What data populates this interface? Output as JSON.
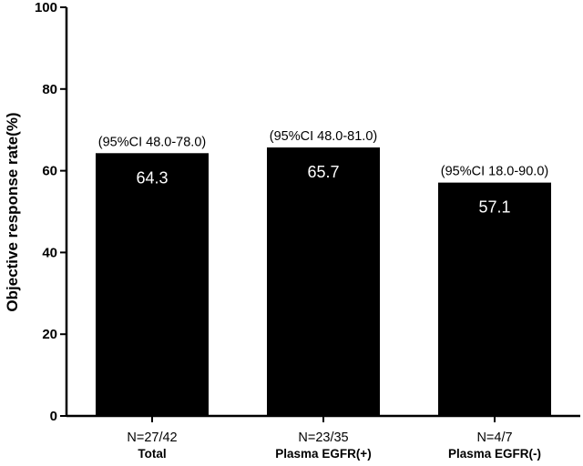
{
  "chart_data": {
    "type": "bar",
    "ylabel": "Objective response rate(%)",
    "ylim": [
      0,
      100
    ],
    "yticks": [
      0,
      20,
      40,
      60,
      80,
      100
    ],
    "grid": false,
    "bar_color": "#000000",
    "value_label_color": "#ffffff",
    "bars": [
      {
        "category": "Total",
        "value": 64.3,
        "value_label": "64.3",
        "ci_label": "(95%CI 48.0-78.0)",
        "n_label": "N=27/42"
      },
      {
        "category": "Plasma EGFR(+)",
        "value": 65.7,
        "value_label": "65.7",
        "ci_label": "(95%CI 48.0-81.0)",
        "n_label": "N=23/35"
      },
      {
        "category": "Plasma EGFR(-)",
        "value": 57.1,
        "value_label": "57.1",
        "ci_label": "(95%CI 18.0-90.0)",
        "n_label": "N=4/7"
      }
    ]
  }
}
